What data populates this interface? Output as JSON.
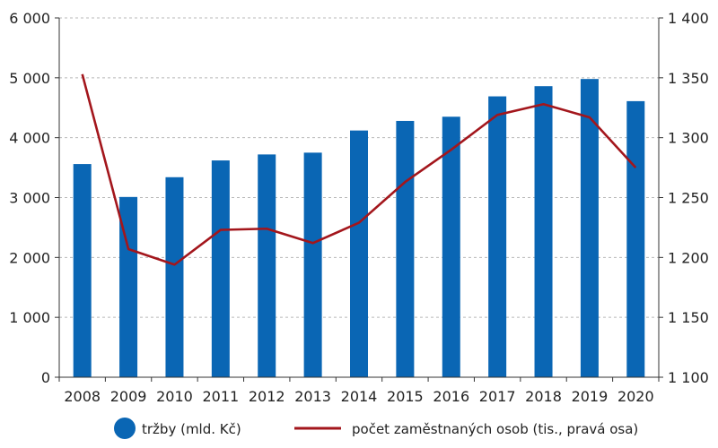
{
  "chart_data": {
    "type": "bar+line",
    "title": "",
    "xlabel": "",
    "categories": [
      "2008",
      "2009",
      "2010",
      "2011",
      "2012",
      "2013",
      "2014",
      "2015",
      "2016",
      "2017",
      "2018",
      "2019",
      "2020"
    ],
    "series": [
      {
        "name": "tržby (mld. Kč)",
        "type": "bar",
        "axis": "left",
        "color": "#0a66b4",
        "values": [
          3560,
          3010,
          3340,
          3620,
          3720,
          3750,
          4120,
          4280,
          4350,
          4690,
          4860,
          4980,
          4610
        ]
      },
      {
        "name": "počet zaměstnaných osob (tis., pravá osa)",
        "type": "line",
        "axis": "right",
        "color": "#a3161c",
        "values": [
          1353,
          1207,
          1194,
          1223,
          1224,
          1212,
          1229,
          1263,
          1290,
          1319,
          1328,
          1317,
          1275
        ]
      }
    ],
    "y_left": {
      "min": 0,
      "max": 6000,
      "ticks": [
        0,
        1000,
        2000,
        3000,
        4000,
        5000,
        6000
      ],
      "tick_labels": [
        "0",
        "1 000",
        "2 000",
        "3 000",
        "4 000",
        "5 000",
        "6 000"
      ]
    },
    "y_right": {
      "min": 1100,
      "max": 1400,
      "ticks": [
        1100,
        1150,
        1200,
        1250,
        1300,
        1350,
        1400
      ],
      "tick_labels": [
        "1 100",
        "1 150",
        "1 200",
        "1 250",
        "1 300",
        "1 350",
        "1 400"
      ]
    },
    "grid": "horizontal dashed",
    "legend_position": "bottom"
  }
}
